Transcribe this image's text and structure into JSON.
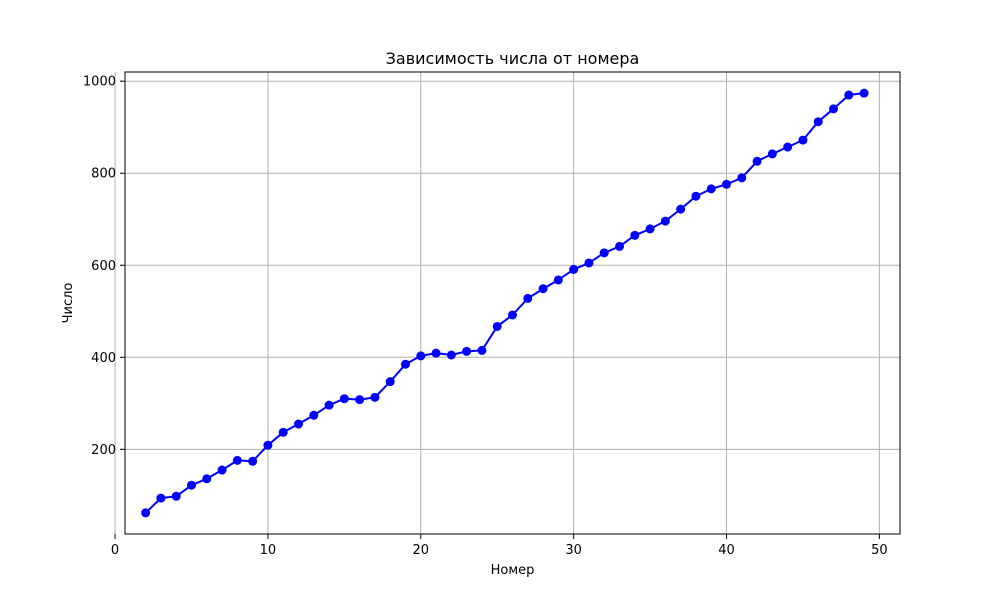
{
  "chart_data": {
    "type": "line",
    "title": "Зависимость числа от номера",
    "xlabel": "Номер",
    "ylabel": "Число",
    "xlim": [
      0.65,
      51.35
    ],
    "ylim": [
      16,
      1020
    ],
    "xticks": [
      0,
      10,
      20,
      30,
      40,
      50
    ],
    "yticks": [
      200,
      400,
      600,
      800,
      1000
    ],
    "grid": true,
    "series": [
      {
        "color": "#0000ff",
        "marker": "circle",
        "x": [
          2,
          3,
          4,
          5,
          6,
          7,
          8,
          9,
          10,
          11,
          12,
          13,
          14,
          15,
          16,
          17,
          18,
          19,
          20,
          21,
          22,
          23,
          24,
          25,
          26,
          27,
          28,
          29,
          30,
          31,
          32,
          33,
          34,
          35,
          36,
          37,
          38,
          39,
          40,
          41,
          42,
          43,
          44,
          45,
          46,
          47,
          48,
          49
        ],
        "y": [
          62,
          94,
          98,
          122,
          136,
          155,
          176,
          174,
          209,
          237,
          255,
          274,
          296,
          310,
          308,
          313,
          347,
          385,
          403,
          409,
          405,
          413,
          415,
          467,
          492,
          528,
          549,
          568,
          591,
          605,
          627,
          641,
          665,
          679,
          696,
          722,
          750,
          766,
          776,
          790,
          826,
          842,
          857,
          872,
          912,
          940,
          970,
          974
        ]
      }
    ]
  }
}
